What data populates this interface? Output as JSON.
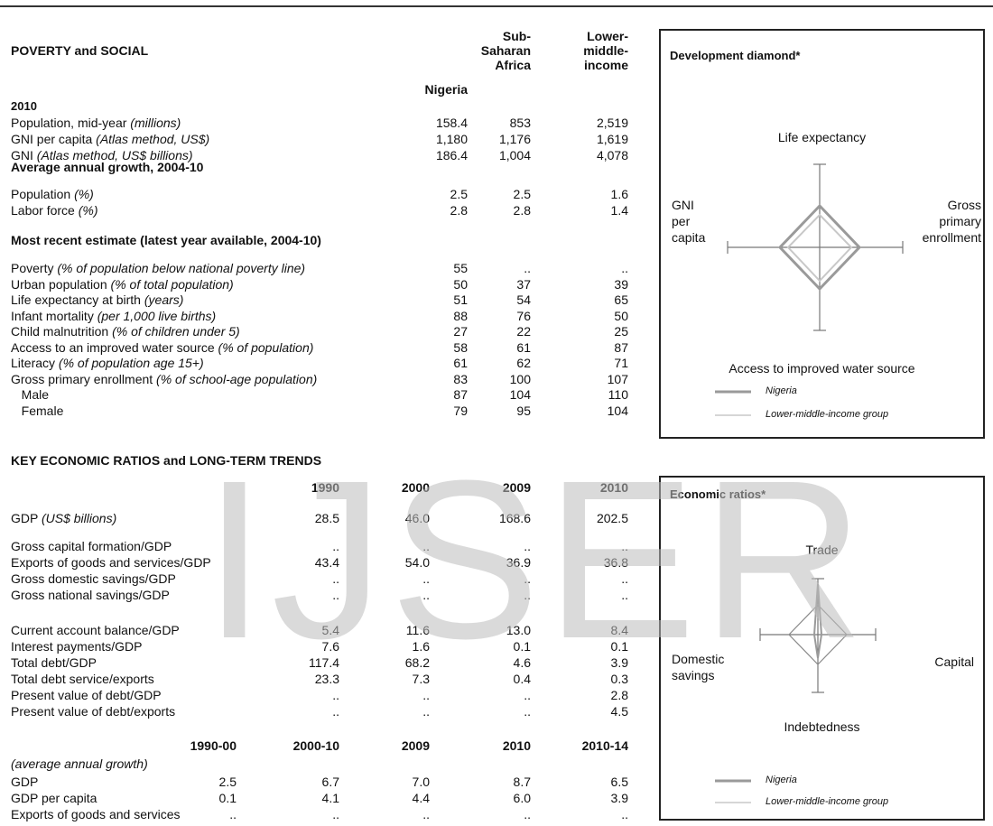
{
  "poverty": {
    "title": "POVERTY and SOCIAL",
    "columns": [
      "Nigeria",
      "Sub-Saharan Africa",
      "Lower-middle-income"
    ],
    "col_lines": {
      "c1": [
        "Nigeria"
      ],
      "c2": [
        "Sub-",
        "Saharan",
        "Africa"
      ],
      "c3": [
        "Lower-",
        "middle-",
        "income"
      ]
    },
    "year_label": "2010",
    "rows_2010": [
      {
        "label": "Population, mid-year ",
        "unit": "(millions)",
        "v": [
          "158.4",
          "853",
          "2,519"
        ]
      },
      {
        "label": "GNI per capita ",
        "unit": "(Atlas method, US$)",
        "v": [
          "1,180",
          "1,176",
          "1,619"
        ]
      },
      {
        "label": "GNI ",
        "unit": "(Atlas method, US$ billions)",
        "v": [
          "186.4",
          "1,004",
          "4,078"
        ]
      }
    ],
    "growth_header": "Average annual growth, 2004-10",
    "rows_growth": [
      {
        "label": "Population ",
        "unit": "(%)",
        "v": [
          "2.5",
          "2.5",
          "1.6"
        ]
      },
      {
        "label": "Labor force ",
        "unit": "(%)",
        "v": [
          "2.8",
          "2.8",
          "1.4"
        ]
      }
    ],
    "recent_header": "Most recent estimate (latest year available, 2004-10)",
    "rows_recent": [
      {
        "label": "Poverty ",
        "unit": "(% of population below national poverty line)",
        "v": [
          "55",
          "..",
          ".."
        ]
      },
      {
        "label": "Urban population ",
        "unit": "(% of total population)",
        "v": [
          "50",
          "37",
          "39"
        ]
      },
      {
        "label": "Life expectancy at birth ",
        "unit": "(years)",
        "v": [
          "51",
          "54",
          "65"
        ]
      },
      {
        "label": "Infant mortality ",
        "unit": "(per 1,000 live births)",
        "v": [
          "88",
          "76",
          "50"
        ]
      },
      {
        "label": "Child malnutrition ",
        "unit": "(% of children under 5)",
        "v": [
          "27",
          "22",
          "25"
        ]
      },
      {
        "label": "Access to an improved water source ",
        "unit": "(% of population)",
        "v": [
          "58",
          "61",
          "87"
        ]
      },
      {
        "label": "Literacy ",
        "unit": "(% of population age 15+)",
        "v": [
          "61",
          "62",
          "71"
        ]
      },
      {
        "label": "Gross primary enrollment  ",
        "unit": "(% of school-age population)",
        "v": [
          "83",
          "100",
          "107"
        ]
      },
      {
        "label": "   Male",
        "unit": "",
        "v": [
          "87",
          "104",
          "110"
        ]
      },
      {
        "label": "   Female",
        "unit": "",
        "v": [
          "79",
          "95",
          "104"
        ]
      }
    ]
  },
  "ratios": {
    "title": "KEY ECONOMIC RATIOS and LONG-TERM TRENDS",
    "years": [
      "1990",
      "2000",
      "2009",
      "2010"
    ],
    "rows_a": [
      {
        "label": "GDP ",
        "unit": "(US$ billions)",
        "v": [
          "28.5",
          "46.0",
          "168.6",
          "202.5"
        ]
      }
    ],
    "rows_b": [
      {
        "label": "Gross capital formation/GDP",
        "unit": "",
        "v": [
          "..",
          "..",
          "..",
          ".."
        ]
      },
      {
        "label": "Exports of goods and services/GDP",
        "unit": "",
        "v": [
          "43.4",
          "54.0",
          "36.9",
          "36.8"
        ]
      },
      {
        "label": "Gross domestic savings/GDP",
        "unit": "",
        "v": [
          "..",
          "..",
          "..",
          ".."
        ]
      },
      {
        "label": "Gross national savings/GDP",
        "unit": "",
        "v": [
          "..",
          "..",
          "..",
          ".."
        ]
      }
    ],
    "rows_c": [
      {
        "label": "Current account balance/GDP",
        "unit": "",
        "v": [
          "5.4",
          "11.6",
          "13.0",
          "8.4"
        ]
      },
      {
        "label": "Interest payments/GDP",
        "unit": "",
        "v": [
          "7.6",
          "1.6",
          "0.1",
          "0.1"
        ]
      },
      {
        "label": "Total debt/GDP",
        "unit": "",
        "v": [
          "117.4",
          "68.2",
          "4.6",
          "3.9"
        ]
      },
      {
        "label": "Total debt service/exports",
        "unit": "",
        "v": [
          "23.3",
          "7.3",
          "0.4",
          "0.3"
        ]
      },
      {
        "label": "Present value of debt/GDP",
        "unit": "",
        "v": [
          "..",
          "..",
          "..",
          "2.8"
        ]
      },
      {
        "label": "Present value of debt/exports",
        "unit": "",
        "v": [
          "..",
          "..",
          "..",
          "4.5"
        ]
      }
    ],
    "periods": [
      "1990-00",
      "2000-10",
      "2009",
      "2010",
      "2010-14"
    ],
    "growth_label": "(average annual growth)",
    "rows_d": [
      {
        "label": "GDP",
        "unit": "",
        "v": [
          "2.5",
          "6.7",
          "7.0",
          "8.7",
          "6.5"
        ]
      },
      {
        "label": "GDP per capita",
        "unit": "",
        "v": [
          "0.1",
          "4.1",
          "4.4",
          "6.0",
          "3.9"
        ]
      },
      {
        "label": "Exports of goods and services",
        "unit": "",
        "v": [
          "..",
          "..",
          "..",
          "..",
          ".."
        ]
      }
    ]
  },
  "diamond1": {
    "title": "Development diamond*",
    "top": "Life expectancy",
    "left_lines": [
      "GNI",
      "per",
      "capita"
    ],
    "right_lines": [
      "Gross",
      "primary",
      "enrollment"
    ],
    "bottom": "Access to improved water source",
    "legend": [
      "Nigeria",
      "Lower-middle-income group"
    ],
    "colors": {
      "nigeria": "#9a9a9a",
      "group": "#c8c8c8"
    }
  },
  "diamond2": {
    "title": "Economic ratios*",
    "top": "Trade",
    "left_lines": [
      "Domestic",
      "savings"
    ],
    "right_lines": [
      "Capital"
    ],
    "bottom": "Indebtedness",
    "legend": [
      "Nigeria",
      "Lower-middle-income group"
    ]
  },
  "watermark": "IJSER"
}
